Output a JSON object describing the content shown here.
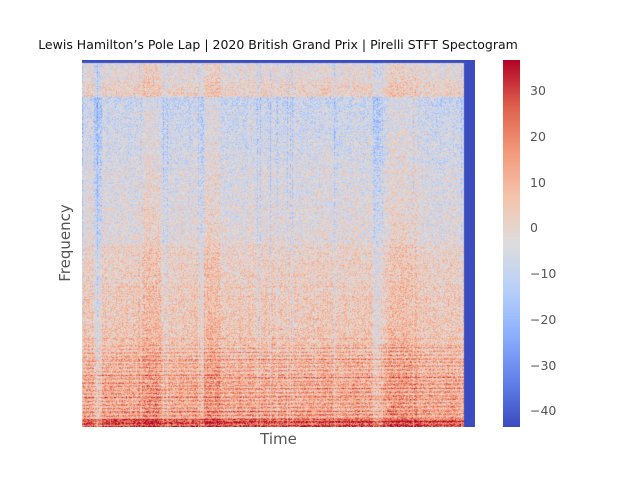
{
  "chart_data": {
    "type": "heatmap",
    "title": "Lewis Hamilton’s Pole Lap | 2020 British Grand Prix | Pirelli STFT Spectogram",
    "xlabel": "Time",
    "ylabel": "Frequency",
    "colormap": "coolwarm",
    "colors": {
      "low": "#3b4cc0",
      "mid": "#dddddd",
      "high": "#b40426"
    },
    "colorbar": {
      "range": [
        -43,
        37
      ],
      "ticks": [
        -40,
        -30,
        -20,
        -10,
        0,
        10,
        20,
        30
      ],
      "tick_labels": [
        "−40",
        "−30",
        "−20",
        "−10",
        "0",
        "10",
        "20",
        "30"
      ]
    },
    "x_ticks_shown": false,
    "y_ticks_shown": false,
    "grid": false,
    "silent_tail_fraction": 0.027,
    "loud_intervals_fraction": [
      [
        0.14,
        0.2
      ],
      [
        0.31,
        0.35
      ],
      [
        0.78,
        0.85
      ]
    ],
    "quiet_intervals_fraction": [
      [
        0.03,
        0.05
      ],
      [
        0.3,
        0.31
      ],
      [
        0.74,
        0.76
      ]
    ]
  }
}
